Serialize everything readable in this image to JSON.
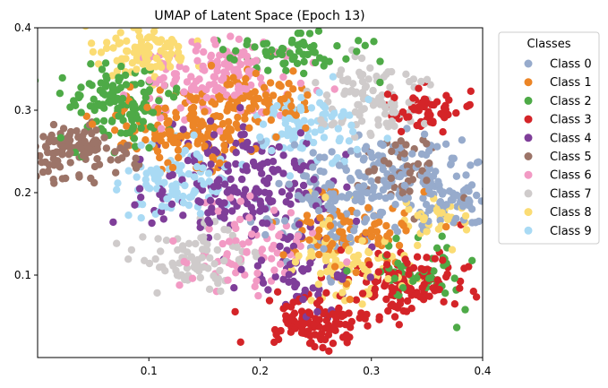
{
  "chart_data": {
    "type": "scatter",
    "title": "UMAP of Latent Space (Epoch 13)",
    "xlabel": "",
    "ylabel": "",
    "xlim": [
      0.0,
      0.4
    ],
    "ylim": [
      0.0,
      0.4
    ],
    "x_ticks": [
      "0.1",
      "0.2",
      "0.3",
      "0.4"
    ],
    "y_ticks": [
      "0.1",
      "0.2",
      "0.3",
      "0.4"
    ],
    "grid": false,
    "legend": {
      "title": "Classes",
      "placement": "outside-right"
    },
    "series": [
      {
        "name": "Class 0",
        "color": "#97abcc",
        "clusters": [
          {
            "cx": 0.33,
            "cy": 0.21,
            "sx": 0.035,
            "sy": 0.025,
            "n": 150
          },
          {
            "cx": 0.25,
            "cy": 0.19,
            "sx": 0.03,
            "sy": 0.03,
            "n": 100
          },
          {
            "cx": 0.38,
            "cy": 0.19,
            "sx": 0.012,
            "sy": 0.012,
            "n": 30
          }
        ]
      },
      {
        "name": "Class 1",
        "color": "#ec8526",
        "clusters": [
          {
            "cx": 0.13,
            "cy": 0.28,
            "sx": 0.035,
            "sy": 0.025,
            "n": 150
          },
          {
            "cx": 0.2,
            "cy": 0.31,
            "sx": 0.025,
            "sy": 0.02,
            "n": 80
          },
          {
            "cx": 0.28,
            "cy": 0.15,
            "sx": 0.03,
            "sy": 0.025,
            "n": 90
          }
        ]
      },
      {
        "name": "Class 2",
        "color": "#4eaa47",
        "clusters": [
          {
            "cx": 0.07,
            "cy": 0.31,
            "sx": 0.025,
            "sy": 0.025,
            "n": 130
          },
          {
            "cx": 0.23,
            "cy": 0.37,
            "sx": 0.03,
            "sy": 0.012,
            "n": 70
          },
          {
            "cx": 0.35,
            "cy": 0.1,
            "sx": 0.02,
            "sy": 0.02,
            "n": 50
          }
        ]
      },
      {
        "name": "Class 3",
        "color": "#d42428",
        "clusters": [
          {
            "cx": 0.25,
            "cy": 0.04,
            "sx": 0.02,
            "sy": 0.015,
            "n": 100
          },
          {
            "cx": 0.33,
            "cy": 0.09,
            "sx": 0.03,
            "sy": 0.02,
            "n": 120
          },
          {
            "cx": 0.35,
            "cy": 0.3,
            "sx": 0.02,
            "sy": 0.012,
            "n": 60
          }
        ]
      },
      {
        "name": "Class 4",
        "color": "#7f3e99",
        "clusters": [
          {
            "cx": 0.18,
            "cy": 0.21,
            "sx": 0.04,
            "sy": 0.035,
            "n": 200
          },
          {
            "cx": 0.24,
            "cy": 0.1,
            "sx": 0.03,
            "sy": 0.025,
            "n": 60
          }
        ]
      },
      {
        "name": "Class 5",
        "color": "#9c7468",
        "clusters": [
          {
            "cx": 0.04,
            "cy": 0.25,
            "sx": 0.025,
            "sy": 0.015,
            "n": 120
          },
          {
            "cx": 0.33,
            "cy": 0.23,
            "sx": 0.02,
            "sy": 0.02,
            "n": 50
          }
        ]
      },
      {
        "name": "Class 6",
        "color": "#f29ac4",
        "clusters": [
          {
            "cx": 0.16,
            "cy": 0.34,
            "sx": 0.035,
            "sy": 0.025,
            "n": 150
          },
          {
            "cx": 0.19,
            "cy": 0.13,
            "sx": 0.03,
            "sy": 0.025,
            "n": 70
          }
        ]
      },
      {
        "name": "Class 7",
        "color": "#cfcbcb",
        "clusters": [
          {
            "cx": 0.3,
            "cy": 0.31,
            "sx": 0.025,
            "sy": 0.02,
            "n": 100
          },
          {
            "cx": 0.14,
            "cy": 0.12,
            "sx": 0.025,
            "sy": 0.02,
            "n": 80
          }
        ]
      },
      {
        "name": "Class 8",
        "color": "#fbdc74",
        "clusters": [
          {
            "cx": 0.1,
            "cy": 0.37,
            "sx": 0.02,
            "sy": 0.015,
            "n": 100
          },
          {
            "cx": 0.28,
            "cy": 0.12,
            "sx": 0.03,
            "sy": 0.025,
            "n": 90
          },
          {
            "cx": 0.36,
            "cy": 0.17,
            "sx": 0.015,
            "sy": 0.015,
            "n": 30
          }
        ]
      },
      {
        "name": "Class 9",
        "color": "#a9daf4",
        "clusters": [
          {
            "cx": 0.24,
            "cy": 0.28,
            "sx": 0.025,
            "sy": 0.02,
            "n": 90
          },
          {
            "cx": 0.13,
            "cy": 0.21,
            "sx": 0.025,
            "sy": 0.025,
            "n": 90
          }
        ]
      }
    ]
  }
}
